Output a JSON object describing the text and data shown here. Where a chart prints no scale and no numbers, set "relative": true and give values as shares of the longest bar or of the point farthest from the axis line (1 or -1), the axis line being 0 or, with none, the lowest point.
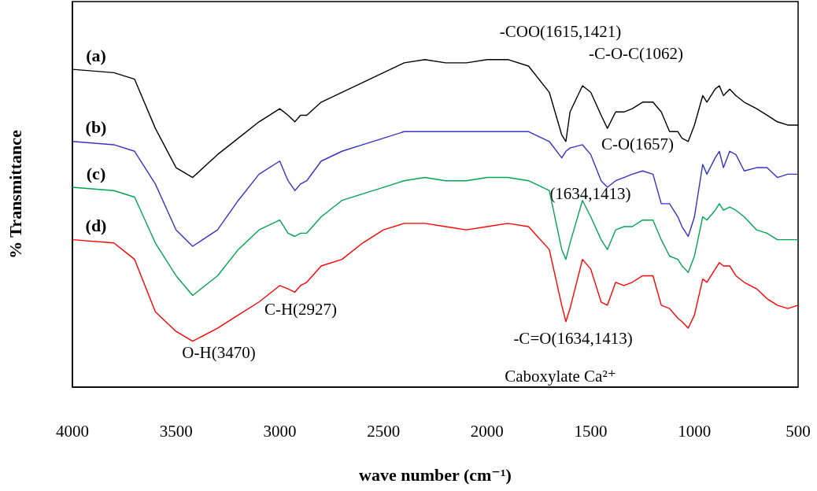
{
  "chart_data": {
    "type": "line",
    "relative": true,
    "xlabel": "wave number (cm⁻¹)",
    "ylabel": "% Transmittance",
    "xlim": [
      4000,
      500
    ],
    "xticks": [
      4000,
      3500,
      3000,
      2500,
      2000,
      1500,
      1000,
      500
    ],
    "tick_labels": "x",
    "grid": false,
    "legend": false,
    "marker": "none",
    "line_style": "solid",
    "x": [
      4000,
      3800,
      3700,
      3600,
      3500,
      3420,
      3300,
      3200,
      3100,
      3000,
      2960,
      2927,
      2900,
      2870,
      2800,
      2700,
      2600,
      2500,
      2400,
      2300,
      2200,
      2100,
      2000,
      1900,
      1800,
      1700,
      1640,
      1620,
      1600,
      1540,
      1500,
      1450,
      1420,
      1380,
      1340,
      1300,
      1250,
      1200,
      1160,
      1120,
      1080,
      1060,
      1030,
      1000,
      960,
      940,
      900,
      880,
      860,
      830,
      800,
      760,
      700,
      650,
      600,
      550,
      500
    ],
    "series": [
      {
        "name": "(a)",
        "color": "#000000",
        "values": [
          0.97,
          0.96,
          0.94,
          0.79,
          0.67,
          0.64,
          0.71,
          0.76,
          0.81,
          0.85,
          0.83,
          0.81,
          0.83,
          0.83,
          0.87,
          0.9,
          0.93,
          0.96,
          0.99,
          1.0,
          0.99,
          0.99,
          1.0,
          1.0,
          0.98,
          0.9,
          0.77,
          0.75,
          0.84,
          0.92,
          0.9,
          0.83,
          0.79,
          0.84,
          0.84,
          0.85,
          0.87,
          0.87,
          0.84,
          0.78,
          0.78,
          0.76,
          0.75,
          0.8,
          0.89,
          0.87,
          0.91,
          0.92,
          0.89,
          0.91,
          0.89,
          0.87,
          0.85,
          0.83,
          0.81,
          0.8,
          0.8
        ]
      },
      {
        "name": "(b)",
        "color": "#3333cc",
        "values": [
          0.75,
          0.74,
          0.72,
          0.62,
          0.48,
          0.43,
          0.48,
          0.57,
          0.65,
          0.69,
          0.63,
          0.6,
          0.62,
          0.63,
          0.69,
          0.72,
          0.74,
          0.76,
          0.78,
          0.78,
          0.78,
          0.78,
          0.78,
          0.78,
          0.78,
          0.75,
          0.7,
          0.72,
          0.73,
          0.74,
          0.71,
          0.63,
          0.61,
          0.63,
          0.64,
          0.65,
          0.66,
          0.65,
          0.56,
          0.56,
          0.52,
          0.49,
          0.46,
          0.52,
          0.68,
          0.65,
          0.7,
          0.72,
          0.67,
          0.72,
          0.71,
          0.66,
          0.67,
          0.67,
          0.64,
          0.65,
          0.65
        ]
      },
      {
        "name": "(c)",
        "color": "#00a550",
        "values": [
          0.61,
          0.6,
          0.58,
          0.44,
          0.34,
          0.28,
          0.34,
          0.42,
          0.48,
          0.51,
          0.47,
          0.46,
          0.47,
          0.47,
          0.52,
          0.57,
          0.59,
          0.61,
          0.63,
          0.64,
          0.63,
          0.63,
          0.64,
          0.64,
          0.63,
          0.6,
          0.42,
          0.39,
          0.44,
          0.57,
          0.52,
          0.45,
          0.42,
          0.48,
          0.49,
          0.49,
          0.51,
          0.51,
          0.45,
          0.4,
          0.39,
          0.37,
          0.35,
          0.4,
          0.52,
          0.51,
          0.54,
          0.56,
          0.54,
          0.55,
          0.54,
          0.52,
          0.48,
          0.47,
          0.45,
          0.45,
          0.45
        ]
      },
      {
        "name": "(d)",
        "color": "#ff0000",
        "values": [
          0.45,
          0.44,
          0.39,
          0.23,
          0.17,
          0.14,
          0.18,
          0.22,
          0.26,
          0.31,
          0.3,
          0.29,
          0.31,
          0.32,
          0.37,
          0.39,
          0.44,
          0.48,
          0.5,
          0.5,
          0.49,
          0.48,
          0.49,
          0.5,
          0.49,
          0.42,
          0.25,
          0.2,
          0.24,
          0.39,
          0.36,
          0.26,
          0.25,
          0.32,
          0.31,
          0.32,
          0.34,
          0.34,
          0.25,
          0.24,
          0.21,
          0.2,
          0.18,
          0.22,
          0.33,
          0.32,
          0.36,
          0.38,
          0.37,
          0.37,
          0.34,
          0.32,
          0.3,
          0.27,
          0.25,
          0.24,
          0.25
        ]
      }
    ],
    "annotations": [
      "-COO(1615,1421)",
      "-C-O-C(1062)",
      "C-O(1657)",
      "(1634,1413)",
      "C-H(2927)",
      "O-H(3470)",
      "-C=O(1634,1413)",
      "Caboxylate Ca²⁺"
    ]
  }
}
